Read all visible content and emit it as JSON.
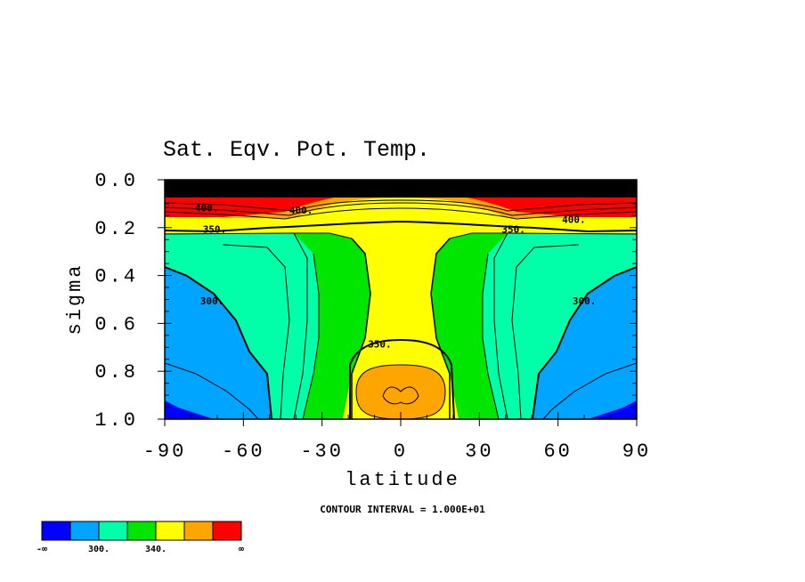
{
  "chart_data": {
    "type": "contour",
    "title": "Sat. Eqv. Pot. Temp.",
    "xlabel": "latitude",
    "ylabel": "sigma",
    "xlim": [
      -90,
      90
    ],
    "ylim": [
      0.0,
      1.0
    ],
    "y_inverted": true,
    "xticks": [
      "-90",
      "-60",
      "-30",
      "0",
      "30",
      "60",
      "90"
    ],
    "yticks": [
      "0.0",
      "0.2",
      "0.4",
      "0.6",
      "0.8",
      "1.0"
    ],
    "contour_interval_note": "CONTOUR INTERVAL = 1.000E+01",
    "contour_interval": 10,
    "contour_labels": [
      {
        "text": "400.",
        "lat": -74,
        "sigma": 0.12
      },
      {
        "text": "400.",
        "lat": -38,
        "sigma": 0.13
      },
      {
        "text": "400.",
        "lat": 66,
        "sigma": 0.17
      },
      {
        "text": "400.",
        "lat": -76,
        "sigma": 0.06
      },
      {
        "text": "350.",
        "lat": -71,
        "sigma": 0.21
      },
      {
        "text": "350.",
        "lat": 43,
        "sigma": 0.21
      },
      {
        "text": "300.",
        "lat": -72,
        "sigma": 0.51
      },
      {
        "text": "300.",
        "lat": 70,
        "sigma": 0.51
      },
      {
        "text": "350.",
        "lat": -8,
        "sigma": 0.69
      }
    ],
    "fill_levels": [
      {
        "range": "< 300",
        "color": "#0000ff"
      },
      {
        "range": "300-320",
        "color": "#00a5ff"
      },
      {
        "range": "320-340",
        "color": "#00ffa8"
      },
      {
        "range": "340-350",
        "color": "#00e600"
      },
      {
        "range": "350-380",
        "color": "#ffff00"
      },
      {
        "range": "380-400",
        "color": "#ffa500"
      },
      {
        "range": "> 400",
        "color": "#ff0000"
      }
    ],
    "colorbar": {
      "colors": [
        "#0000ff",
        "#00a5ff",
        "#00ffa8",
        "#00e600",
        "#ffff00",
        "#ffa500",
        "#ff0000"
      ],
      "labels": [
        "-∞",
        "300.",
        "340.",
        "∞"
      ]
    }
  }
}
